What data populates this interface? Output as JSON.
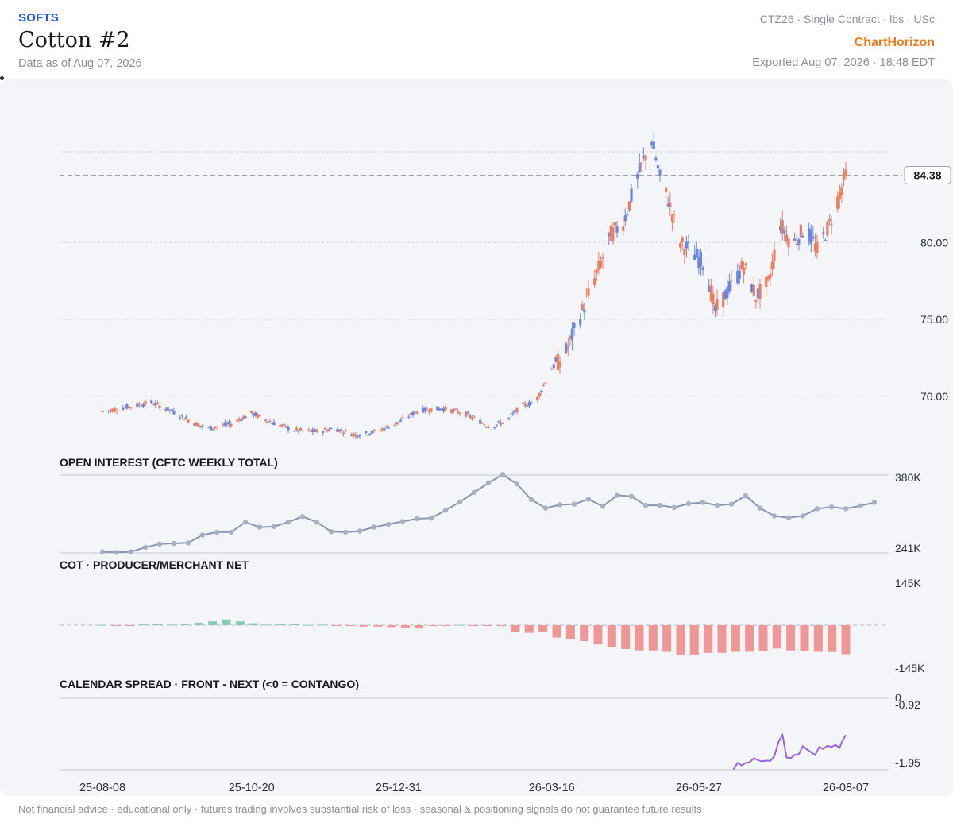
{
  "header": {
    "category": "SOFTS",
    "title": "Cotton #2",
    "as_of": "Data as of Aug 07, 2026",
    "contract_meta": "CTZ26 · Single Contract · lbs · USc",
    "brand": "ChartHorizon",
    "exported": "Exported Aug 07, 2026 · 18:48 EDT"
  },
  "footer": {
    "disclaimer": "Not financial advice · educational only · futures trading involves substantial risk of loss · seasonal & positioning signals do not guarantee future results"
  },
  "colors": {
    "up": "#6b86e0",
    "down": "#ee7e5e",
    "oi_line": "#8896b4",
    "cot_pos": "#86cdb3",
    "cot_neg": "#ee9797",
    "spread": "#9a64dc",
    "brand": "#f07a1a",
    "accent": "#2a5bd7"
  },
  "chart_data": [
    {
      "type": "candlestick",
      "title": "",
      "ylim": [
        65.5,
        90.5
      ],
      "y_ticks": [
        "70.00",
        "75.00",
        "80.00"
      ],
      "last_price_label": "84.38",
      "last_price": 84.38,
      "x_ticks": [
        "25-08-08",
        "25-10-20",
        "25-12-31",
        "26-03-16",
        "26-05-27",
        "26-08-07"
      ],
      "x_range": [
        "2025-08-08",
        "2026-08-07"
      ],
      "close_anchors": [
        [
          "2025-08-08",
          69.0
        ],
        [
          "2025-08-20",
          69.3
        ],
        [
          "2025-09-01",
          69.6
        ],
        [
          "2025-09-10",
          69.1
        ],
        [
          "2025-09-20",
          68.4
        ],
        [
          "2025-09-28",
          67.9
        ],
        [
          "2025-10-10",
          68.2
        ],
        [
          "2025-10-20",
          68.9
        ],
        [
          "2025-10-30",
          68.3
        ],
        [
          "2025-11-10",
          67.8
        ],
        [
          "2025-11-20",
          67.7
        ],
        [
          "2025-11-30",
          67.9
        ],
        [
          "2025-12-10",
          67.5
        ],
        [
          "2025-12-20",
          67.7
        ],
        [
          "2025-12-31",
          68.3
        ],
        [
          "2026-01-10",
          69.1
        ],
        [
          "2026-01-22",
          69.2
        ],
        [
          "2026-02-01",
          68.9
        ],
        [
          "2026-02-14",
          68.0
        ],
        [
          "2026-02-22",
          68.4
        ],
        [
          "2026-03-01",
          69.4
        ],
        [
          "2026-03-08",
          69.6
        ],
        [
          "2026-03-16",
          71.8
        ],
        [
          "2026-03-22",
          72.6
        ],
        [
          "2026-03-30",
          75.2
        ],
        [
          "2026-04-06",
          77.6
        ],
        [
          "2026-04-14",
          80.5
        ],
        [
          "2026-04-20",
          81.3
        ],
        [
          "2026-04-28",
          84.6
        ],
        [
          "2026-05-04",
          86.7
        ],
        [
          "2026-05-08",
          84.2
        ],
        [
          "2026-05-12",
          82.8
        ],
        [
          "2026-05-18",
          80.0
        ],
        [
          "2026-05-25",
          79.2
        ],
        [
          "2026-05-30",
          78.6
        ],
        [
          "2026-06-04",
          75.5
        ],
        [
          "2026-06-10",
          76.8
        ],
        [
          "2026-06-18",
          78.5
        ],
        [
          "2026-06-24",
          76.5
        ],
        [
          "2026-06-30",
          77.3
        ],
        [
          "2026-07-06",
          81.2
        ],
        [
          "2026-07-12",
          79.8
        ],
        [
          "2026-07-18",
          81.0
        ],
        [
          "2026-07-24",
          79.5
        ],
        [
          "2026-07-30",
          81.2
        ],
        [
          "2026-08-07",
          84.38
        ]
      ]
    },
    {
      "type": "line",
      "title": "OPEN INTEREST (CFTC WEEKLY TOTAL)",
      "ylim": [
        241000,
        380000
      ],
      "y_ticks": [
        "380K",
        "241K"
      ],
      "x_range": [
        "2025-08-08",
        "2026-08-07"
      ],
      "points": [
        [
          "2025-08-08",
          243000
        ],
        [
          "2025-08-15",
          242000
        ],
        [
          "2025-08-22",
          243000
        ],
        [
          "2025-08-29",
          251000
        ],
        [
          "2025-09-05",
          257000
        ],
        [
          "2025-09-12",
          258000
        ],
        [
          "2025-09-19",
          259000
        ],
        [
          "2025-09-26",
          273000
        ],
        [
          "2025-10-03",
          278000
        ],
        [
          "2025-10-10",
          278000
        ],
        [
          "2025-10-17",
          296000
        ],
        [
          "2025-10-24",
          287000
        ],
        [
          "2025-10-31",
          288000
        ],
        [
          "2025-11-07",
          296000
        ],
        [
          "2025-11-14",
          306000
        ],
        [
          "2025-11-21",
          296000
        ],
        [
          "2025-11-28",
          279000
        ],
        [
          "2025-12-05",
          278000
        ],
        [
          "2025-12-12",
          280000
        ],
        [
          "2025-12-19",
          287000
        ],
        [
          "2025-12-26",
          292000
        ],
        [
          "2026-01-02",
          297000
        ],
        [
          "2026-01-09",
          302000
        ],
        [
          "2026-01-16",
          303000
        ],
        [
          "2026-01-23",
          317000
        ],
        [
          "2026-01-30",
          332000
        ],
        [
          "2026-02-06",
          349000
        ],
        [
          "2026-02-13",
          366000
        ],
        [
          "2026-02-20",
          381000
        ],
        [
          "2026-02-27",
          364000
        ],
        [
          "2026-03-06",
          336000
        ],
        [
          "2026-03-13",
          321000
        ],
        [
          "2026-03-20",
          327000
        ],
        [
          "2026-03-27",
          328000
        ],
        [
          "2026-04-03",
          337000
        ],
        [
          "2026-04-10",
          324000
        ],
        [
          "2026-04-17",
          344000
        ],
        [
          "2026-04-24",
          342000
        ],
        [
          "2026-05-01",
          326000
        ],
        [
          "2026-05-08",
          326000
        ],
        [
          "2026-05-15",
          322000
        ],
        [
          "2026-05-22",
          329000
        ],
        [
          "2026-05-29",
          331000
        ],
        [
          "2026-06-05",
          326000
        ],
        [
          "2026-06-12",
          328000
        ],
        [
          "2026-06-19",
          343000
        ],
        [
          "2026-06-26",
          321000
        ],
        [
          "2026-07-03",
          307000
        ],
        [
          "2026-07-10",
          304000
        ],
        [
          "2026-07-17",
          307000
        ],
        [
          "2026-07-24",
          320000
        ],
        [
          "2026-07-31",
          323000
        ],
        [
          "2026-08-07",
          320000
        ],
        [
          "2026-08-14",
          325000
        ],
        [
          "2026-08-21",
          331000
        ]
      ]
    },
    {
      "type": "bar",
      "title": "COT · PRODUCER/MERCHANT NET",
      "ylim": [
        -145000,
        145000
      ],
      "y_ticks": [
        "145K",
        "-145K"
      ],
      "x_range": [
        "2025-08-08",
        "2026-08-07"
      ],
      "values": [
        1000,
        -3000,
        -2000,
        3000,
        5000,
        2000,
        3000,
        9000,
        14000,
        21000,
        14000,
        7000,
        2000,
        3000,
        4000,
        1000,
        2000,
        -2000,
        -3000,
        -5000,
        -5000,
        -7000,
        -10000,
        -12000,
        -3000,
        -1000,
        1000,
        -2000,
        -1000,
        -2000,
        -26000,
        -28000,
        -23000,
        -45000,
        -50000,
        -58000,
        -70000,
        -80000,
        -87000,
        -92000,
        -92000,
        -97000,
        -107000,
        -107000,
        -101000,
        -101000,
        -97000,
        -97000,
        -93000,
        -85000,
        -92000,
        -94000,
        -97000,
        -98000,
        -106000
      ]
    },
    {
      "type": "line",
      "title": "CALENDAR SPREAD · FRONT - NEXT (<0 = CONTANGO)",
      "ylim": [
        -1.95,
        0
      ],
      "y_ticks": [
        "0",
        "-0.92",
        "-1.95"
      ],
      "x_range": [
        "2025-08-08",
        "2026-08-07"
      ],
      "points": [
        [
          "2026-06-13",
          -1.78
        ],
        [
          "2026-06-15",
          -1.62
        ],
        [
          "2026-06-17",
          -1.68
        ],
        [
          "2026-06-19",
          -1.62
        ],
        [
          "2026-06-21",
          -1.6
        ],
        [
          "2026-06-23",
          -1.5
        ],
        [
          "2026-06-25",
          -1.55
        ],
        [
          "2026-06-27",
          -1.58
        ],
        [
          "2026-06-29",
          -1.56
        ],
        [
          "2026-07-01",
          -1.57
        ],
        [
          "2026-07-03",
          -1.45
        ],
        [
          "2026-07-05",
          -1.1
        ],
        [
          "2026-07-07",
          -0.92
        ],
        [
          "2026-07-09",
          -1.48
        ],
        [
          "2026-07-11",
          -1.5
        ],
        [
          "2026-07-13",
          -1.42
        ],
        [
          "2026-07-15",
          -1.4
        ],
        [
          "2026-07-17",
          -1.2
        ],
        [
          "2026-07-19",
          -1.28
        ],
        [
          "2026-07-21",
          -1.35
        ],
        [
          "2026-07-23",
          -1.42
        ],
        [
          "2026-07-25",
          -1.22
        ],
        [
          "2026-07-27",
          -1.27
        ],
        [
          "2026-07-29",
          -1.19
        ],
        [
          "2026-07-31",
          -1.22
        ],
        [
          "2026-08-02",
          -1.17
        ],
        [
          "2026-08-04",
          -1.24
        ],
        [
          "2026-08-05",
          -1.1
        ],
        [
          "2026-08-07",
          -0.92
        ]
      ]
    }
  ]
}
